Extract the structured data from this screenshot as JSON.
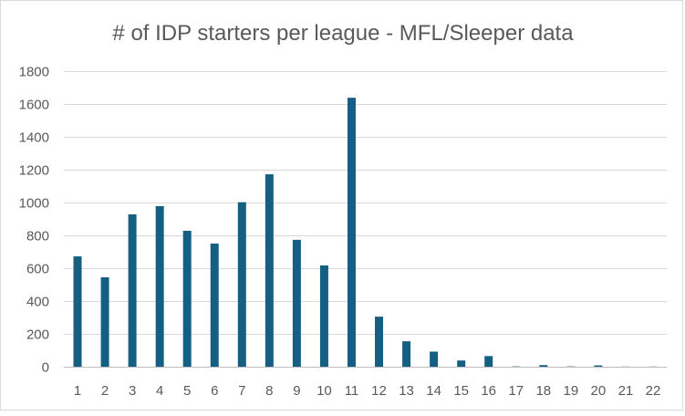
{
  "chart_data": {
    "type": "bar",
    "title": "# of IDP starters per league - MFL/Sleeper data",
    "xlabel": "",
    "ylabel": "",
    "categories": [
      "1",
      "2",
      "3",
      "4",
      "5",
      "6",
      "7",
      "8",
      "9",
      "10",
      "11",
      "12",
      "13",
      "14",
      "15",
      "16",
      "17",
      "18",
      "19",
      "20",
      "21",
      "22"
    ],
    "values": [
      672,
      545,
      928,
      978,
      828,
      750,
      1002,
      1172,
      773,
      617,
      1638,
      305,
      155,
      92,
      38,
      65,
      2,
      10,
      2,
      8,
      1,
      1
    ],
    "ylim": [
      0,
      1800
    ],
    "y_ticks": [
      0,
      200,
      400,
      600,
      800,
      1000,
      1200,
      1400,
      1600,
      1800
    ],
    "y_tick_labels": [
      "0",
      "200",
      "400",
      "600",
      "800",
      "1000",
      "1200",
      "1400",
      "1600",
      "1800"
    ],
    "grid": true,
    "legend": "none",
    "bar_color": "#156082"
  }
}
